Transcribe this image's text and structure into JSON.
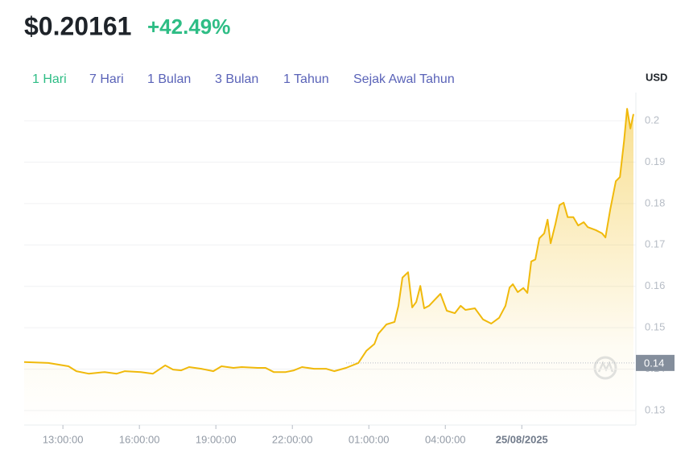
{
  "price": "$0.20161",
  "change": "+42.49%",
  "ranges": [
    "1 Hari",
    "7 Hari",
    "1 Bulan",
    "3 Bulan",
    "1 Tahun",
    "Sejak Awal Tahun"
  ],
  "chart_data": {
    "type": "line",
    "y_label": "USD",
    "color": "#f0b90b",
    "grid": true,
    "x": [
      11.48,
      12.43,
      13.22,
      13.53,
      14.01,
      14.64,
      15.11,
      15.43,
      16.06,
      16.53,
      17.01,
      17.32,
      17.64,
      17.95,
      18.43,
      18.9,
      19.22,
      19.69,
      20.01,
      20.64,
      20.95,
      21.27,
      21.74,
      22.06,
      22.38,
      22.85,
      23.32,
      23.64,
      24.11,
      24.59,
      24.9,
      25.22,
      25.37,
      25.69,
      26.01,
      26.16,
      26.32,
      26.54,
      26.7,
      26.86,
      27.02,
      27.17,
      27.36,
      27.59,
      27.81,
      28.06,
      28.37,
      28.6,
      28.79,
      29.16,
      29.48,
      29.8,
      30.11,
      30.36,
      30.52,
      30.65,
      30.84,
      31.06,
      31.22,
      31.37,
      31.53,
      31.69,
      31.88,
      32.01,
      32.13,
      32.32,
      32.48,
      32.64,
      32.8,
      33.02,
      33.21,
      33.43,
      33.59,
      33.9,
      34.15,
      34.28,
      34.47,
      34.69,
      34.85,
      35.01,
      35.13,
      35.26,
      35.38
    ],
    "values": [
      0.1417,
      0.1415,
      0.1407,
      0.1395,
      0.1389,
      0.1393,
      0.1389,
      0.1395,
      0.1393,
      0.1389,
      0.1409,
      0.1399,
      0.1397,
      0.1405,
      0.1401,
      0.1395,
      0.1407,
      0.1403,
      0.1405,
      0.1403,
      0.1403,
      0.1393,
      0.1393,
      0.1397,
      0.1405,
      0.1401,
      0.1401,
      0.1395,
      0.1403,
      0.1415,
      0.1444,
      0.1461,
      0.1485,
      0.1508,
      0.1514,
      0.1553,
      0.1621,
      0.1634,
      0.1549,
      0.1562,
      0.1601,
      0.1547,
      0.1553,
      0.1568,
      0.1582,
      0.1541,
      0.1535,
      0.1553,
      0.1543,
      0.1547,
      0.152,
      0.151,
      0.1524,
      0.1553,
      0.1597,
      0.1605,
      0.1586,
      0.1596,
      0.1584,
      0.166,
      0.1665,
      0.1716,
      0.1728,
      0.1761,
      0.1704,
      0.1751,
      0.1796,
      0.1802,
      0.1767,
      0.1767,
      0.1747,
      0.1755,
      0.1743,
      0.1736,
      0.1728,
      0.1718,
      0.1786,
      0.1854,
      0.1864,
      0.1951,
      0.2029,
      0.1981,
      0.2016
    ],
    "xlim": [
      11.48,
      35.38
    ],
    "xticks": [
      {
        "value": 13,
        "label": "13:00:00"
      },
      {
        "value": 16,
        "label": "16:00:00"
      },
      {
        "value": 19,
        "label": "19:00:00"
      },
      {
        "value": 22,
        "label": "22:00:00"
      },
      {
        "value": 25,
        "label": "01:00:00"
      },
      {
        "value": 28,
        "label": "04:00:00"
      },
      {
        "value": 31,
        "label": "25/08/2025"
      }
    ],
    "ylim": [
      0.1265,
      0.2068
    ],
    "yticks": [
      0.13,
      0.14,
      0.15,
      0.16,
      0.17,
      0.18,
      0.19,
      0.2
    ],
    "reference_line": {
      "value": 0.1415,
      "label": "0.14"
    }
  }
}
